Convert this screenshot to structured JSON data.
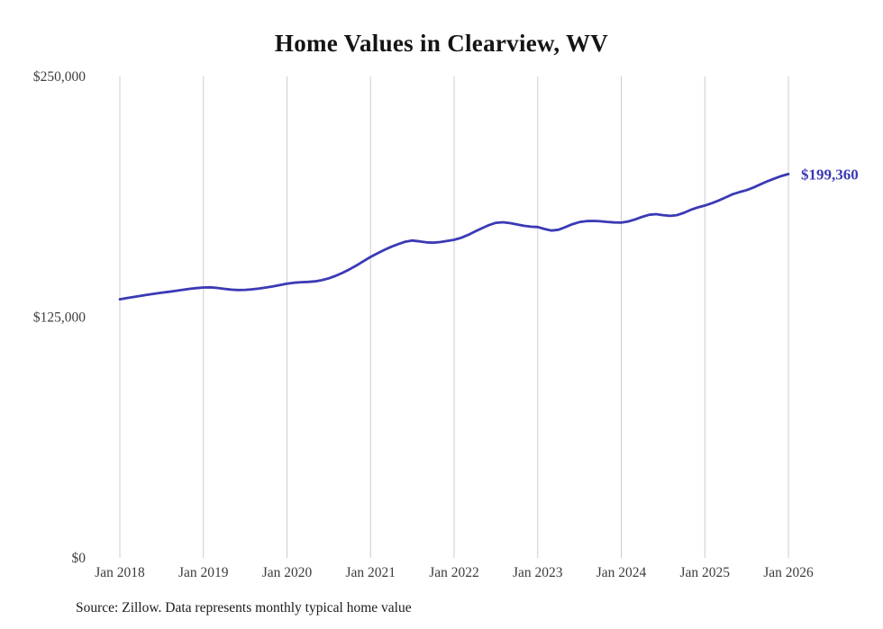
{
  "page": {
    "source_note": "Source: Zillow. Data represents monthly typical home value"
  },
  "chart_data": {
    "type": "line",
    "title": "Home Values in Clearview, WV",
    "x_tick_labels": [
      "Jan 2018",
      "Jan 2019",
      "Jan 2020",
      "Jan 2021",
      "Jan 2022",
      "Jan 2023",
      "Jan 2024",
      "Jan 2025",
      "Jan 2026"
    ],
    "y_ticks": [
      0,
      125000,
      250000
    ],
    "y_tick_labels": [
      "$0",
      "$125,000",
      "$250,000"
    ],
    "ylim": [
      0,
      250000
    ],
    "grid": "vertical-only",
    "grid_color": "#cccccc",
    "line_color": "#3b3ab5",
    "end_label": "$199,360",
    "end_value": 199360,
    "x_start": "2018-01",
    "x_end": "2026-01",
    "x_frequency": "monthly",
    "series": [
      {
        "name": "typical-home-value",
        "values": [
          134300,
          134900,
          135500,
          136100,
          136700,
          137200,
          137700,
          138200,
          138700,
          139200,
          139700,
          140100,
          140400,
          140500,
          140200,
          139700,
          139300,
          139100,
          139200,
          139500,
          139900,
          140400,
          141000,
          141700,
          142400,
          142900,
          143200,
          143300,
          143600,
          144200,
          145200,
          146500,
          148100,
          149900,
          151900,
          154100,
          156300,
          158200,
          160000,
          161600,
          163000,
          164200,
          164800,
          164400,
          163900,
          163700,
          164000,
          164600,
          165200,
          166200,
          167700,
          169500,
          171200,
          172800,
          174000,
          174300,
          173900,
          173200,
          172500,
          172000,
          171800,
          170800,
          170000,
          170400,
          171800,
          173300,
          174400,
          174900,
          175000,
          174800,
          174500,
          174200,
          174100,
          174700,
          175800,
          177100,
          178200,
          178500,
          178000,
          177600,
          178000,
          179200,
          180800,
          182000,
          183000,
          184200,
          185600,
          187200,
          188900,
          190000,
          191000,
          192400,
          194000,
          195600,
          197000,
          198300,
          199360
        ]
      }
    ]
  }
}
